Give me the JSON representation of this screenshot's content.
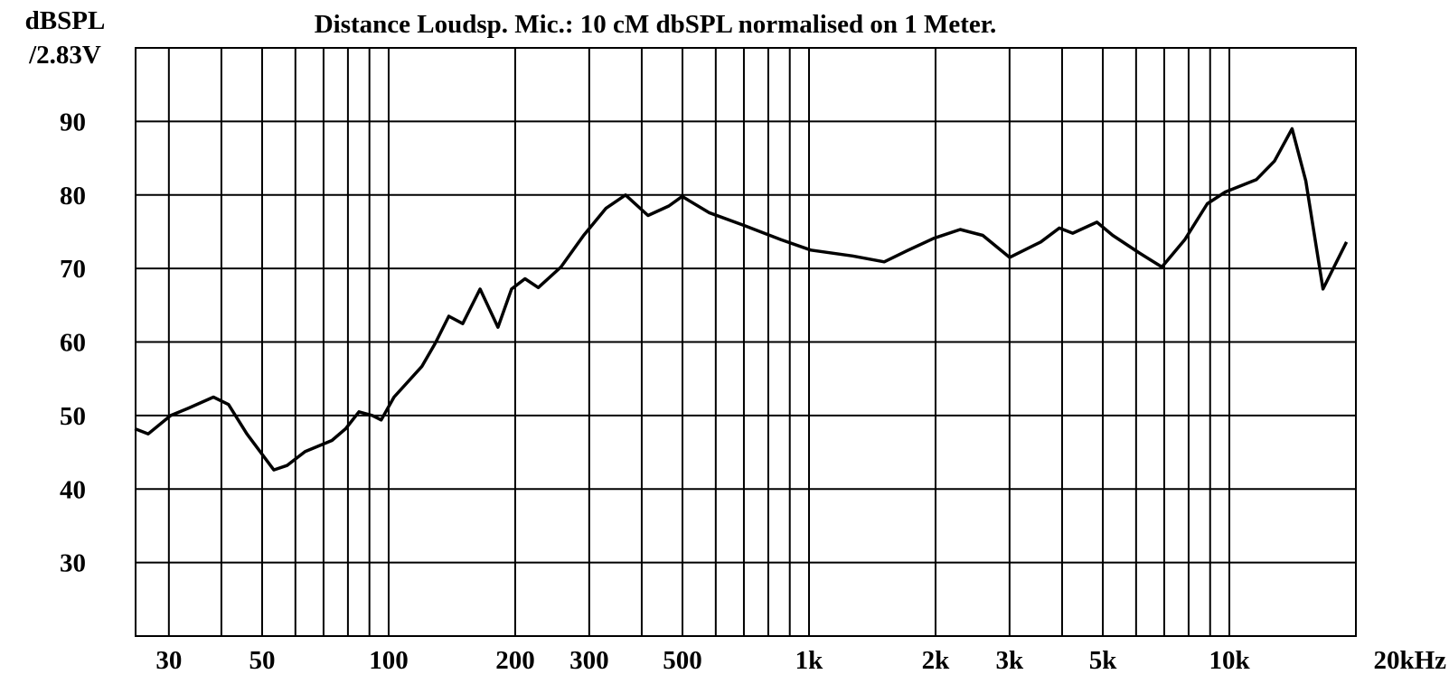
{
  "chart_data": {
    "type": "line",
    "title": "Distance Loudsp. Mic.: 10 cM dbSPL normalised on 1 Meter.",
    "ylabel": [
      "dBSPL",
      "/2.83V"
    ],
    "xscale": "log",
    "grid": true,
    "color": "#000000",
    "xlim": [
      25,
      20000
    ],
    "ylim": [
      20,
      100
    ],
    "yticks": [
      30,
      40,
      50,
      60,
      70,
      80,
      90
    ],
    "ygrid": [
      20,
      30,
      40,
      50,
      60,
      70,
      80,
      90,
      100
    ],
    "xticks": [
      30,
      50,
      100,
      200,
      300,
      500,
      {
        "value": 1000,
        "label": "1k"
      },
      {
        "value": 2000,
        "label": "2k"
      },
      {
        "value": 3000,
        "label": "3k"
      },
      {
        "value": 5000,
        "label": "5k"
      },
      {
        "value": 10000,
        "label": "10k"
      },
      {
        "value": 20000,
        "label": "20kHz"
      }
    ],
    "xminor": [
      40,
      60,
      70,
      80,
      90,
      400,
      600,
      700,
      800,
      900,
      4000,
      6000,
      7000,
      8000,
      9000
    ],
    "x": [
      24.9,
      26.8,
      30.3,
      33.4,
      38.3,
      41.6,
      46,
      53.3,
      57.3,
      63.3,
      73.3,
      79,
      85,
      91.5,
      96,
      103,
      120,
      129,
      139,
      150,
      165,
      182,
      196,
      211,
      227,
      257,
      291,
      329,
      366,
      414,
      464,
      499,
      578,
      704,
      859,
      1010,
      1270,
      1510,
      1710,
      1980,
      2290,
      2590,
      3000,
      3560,
      3940,
      4240,
      4840,
      5280,
      6110,
      6910,
      7830,
      8860,
      9780,
      11600,
      12800,
      14100,
      15200,
      16700,
      19000
    ],
    "values": [
      48.2,
      47.5,
      50,
      51,
      52.5,
      51.5,
      47.5,
      42.6,
      43.2,
      45.1,
      46.6,
      48.2,
      50.5,
      50,
      49.4,
      52.5,
      56.7,
      59.8,
      63.5,
      62.5,
      67.2,
      62,
      67.2,
      68.6,
      67.4,
      70.2,
      74.5,
      78.2,
      80,
      77.2,
      78.5,
      79.8,
      77.6,
      75.8,
      73.9,
      72.5,
      71.7,
      70.9,
      72.4,
      74.1,
      75.3,
      74.5,
      71.5,
      73.6,
      75.5,
      74.8,
      76.3,
      74.5,
      72.1,
      70.2,
      73.9,
      78.8,
      80.4,
      82.1,
      84.6,
      89,
      81.9,
      67.2,
      73.6
    ]
  }
}
